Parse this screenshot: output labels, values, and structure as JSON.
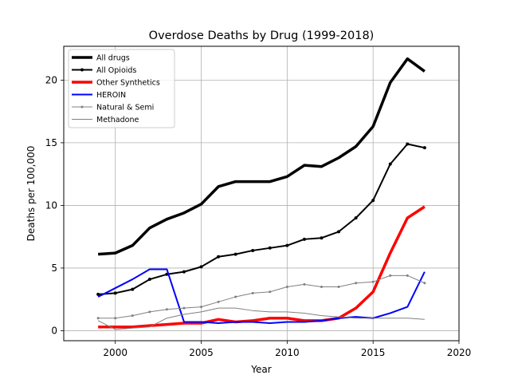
{
  "chart_data": {
    "type": "line",
    "title": "Overdose Deaths by Drug (1999-2018)",
    "xlabel": "Year",
    "ylabel": "Deaths per 100,000",
    "xlim": [
      1997,
      2020
    ],
    "ylim": [
      -0.8,
      22.7
    ],
    "x_ticks": [
      2000,
      2005,
      2010,
      2015,
      2020
    ],
    "y_ticks": [
      0,
      5,
      10,
      15,
      20
    ],
    "grid": true,
    "legend_position": "upper-left",
    "x": [
      1999,
      2000,
      2001,
      2002,
      2003,
      2004,
      2005,
      2006,
      2007,
      2008,
      2009,
      2010,
      2011,
      2012,
      2013,
      2014,
      2015,
      2016,
      2017,
      2018
    ],
    "series": [
      {
        "name": "All drugs",
        "color": "#000000",
        "line_width": "thick",
        "marker": "none",
        "values": [
          6.1,
          6.2,
          6.8,
          8.2,
          8.9,
          9.4,
          10.1,
          11.5,
          11.9,
          11.9,
          11.9,
          12.3,
          13.2,
          13.1,
          13.8,
          14.7,
          16.3,
          19.8,
          21.7,
          20.7
        ]
      },
      {
        "name": "All Opioids",
        "color": "#000000",
        "line_width": "medium",
        "marker": "dot",
        "values": [
          2.9,
          3.0,
          3.3,
          4.1,
          4.5,
          4.7,
          5.1,
          5.9,
          6.1,
          6.4,
          6.6,
          6.8,
          7.3,
          7.4,
          7.9,
          9.0,
          10.4,
          13.3,
          14.9,
          14.6
        ]
      },
      {
        "name": "Other Synthetics",
        "color": "#ff0000",
        "line_width": "thick",
        "marker": "none",
        "values": [
          0.3,
          0.3,
          0.3,
          0.4,
          0.5,
          0.6,
          0.6,
          0.9,
          0.7,
          0.8,
          1.0,
          1.0,
          0.8,
          0.8,
          1.0,
          1.8,
          3.1,
          6.2,
          9.0,
          9.9
        ]
      },
      {
        "name": "HEROIN",
        "color": "#0000ff",
        "line_width": "medium",
        "marker": "none",
        "x": [
          1999,
          2000,
          2001,
          2002,
          2003,
          2004,
          2005,
          2006,
          2007,
          2008,
          2009,
          2010,
          2011,
          2012,
          2013,
          2014,
          2015,
          2016,
          2017,
          2018
        ],
        "values": [
          2.7,
          3.4,
          4.1,
          4.9,
          4.9,
          0.7,
          0.7,
          0.6,
          0.7,
          0.7,
          0.6,
          0.7,
          0.7,
          0.8,
          1.0,
          1.1,
          1.0,
          1.4,
          1.9,
          4.7
        ]
      },
      {
        "name": "Natural & Semi",
        "color": "#808080",
        "line_width": "thin",
        "marker": "dot",
        "values": [
          1.0,
          1.0,
          1.2,
          1.5,
          1.7,
          1.8,
          1.9,
          2.3,
          2.7,
          3.0,
          3.1,
          3.5,
          3.7,
          3.5,
          3.5,
          3.8,
          3.9,
          4.4,
          4.4,
          3.8
        ]
      },
      {
        "name": "Methadone",
        "color": "#808080",
        "line_width": "thin",
        "marker": "none",
        "values": [
          0.8,
          0.1,
          0.2,
          0.3,
          1.0,
          1.3,
          1.5,
          1.8,
          1.8,
          1.6,
          1.5,
          1.5,
          1.4,
          1.2,
          1.1,
          1.0,
          1.0,
          1.0,
          1.0,
          0.9
        ]
      }
    ]
  }
}
